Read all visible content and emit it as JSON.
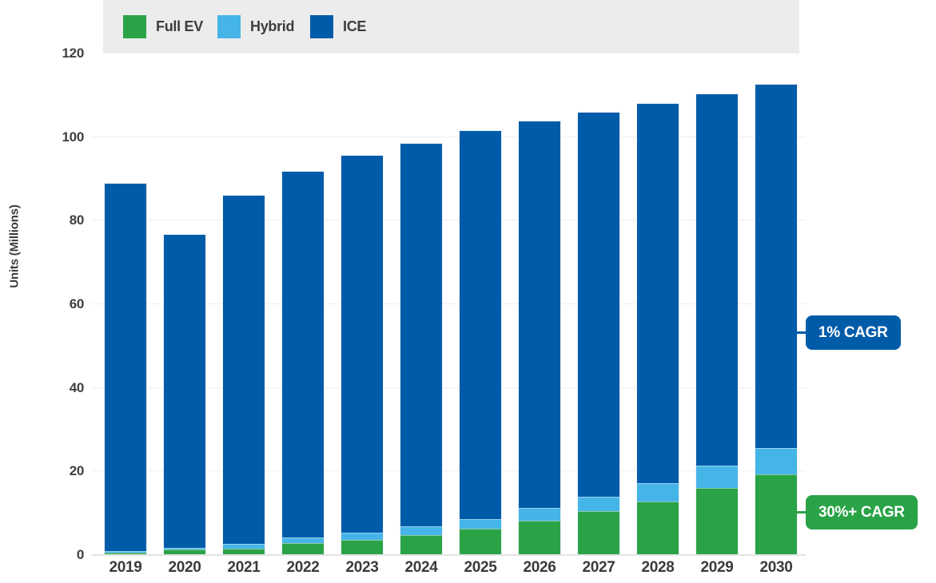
{
  "chart_data": {
    "type": "bar",
    "stacked": true,
    "ylabel": "Units (Millions)",
    "categories": [
      "2019",
      "2020",
      "2021",
      "2022",
      "2023",
      "2024",
      "2025",
      "2026",
      "2027",
      "2028",
      "2029",
      "2030"
    ],
    "series": [
      {
        "name": "Full EV",
        "color": "#2aa347",
        "values": [
          0.4,
          1.2,
          1.4,
          2.7,
          3.5,
          4.6,
          6.1,
          8.0,
          10.3,
          12.6,
          15.8,
          19.2
        ]
      },
      {
        "name": "Hybrid",
        "color": "#45b5e8",
        "values": [
          0.3,
          0.4,
          1.1,
          1.3,
          1.7,
          2.1,
          2.3,
          3.0,
          3.5,
          4.4,
          5.4,
          6.3
        ]
      },
      {
        "name": "ICE",
        "color": "#005ca9",
        "values": [
          87.9,
          74.8,
          83.4,
          87.5,
          90.1,
          91.6,
          92.8,
          92.5,
          91.9,
          90.8,
          88.8,
          86.8
        ]
      }
    ],
    "totals": [
      88.6,
      76.4,
      85.9,
      91.5,
      95.3,
      98.3,
      101.2,
      103.5,
      105.7,
      107.8,
      110.0,
      112.3
    ],
    "ylim": [
      0,
      120
    ],
    "yticks": [
      0,
      20,
      40,
      60,
      80,
      100,
      120
    ],
    "grid": true,
    "legend_position": "top",
    "annotations": [
      {
        "label": "1% CAGR",
        "color": "#005ca9",
        "value_y": 53,
        "points_to": "ICE series top growth"
      },
      {
        "label": "30%+ CAGR",
        "color": "#2aa347",
        "value_y": 10,
        "points_to": "Full EV series growth"
      }
    ],
    "colors": {
      "legend_background": "#ececec",
      "tick_text": "#3f3f3f",
      "gridline": "#efefef"
    }
  }
}
